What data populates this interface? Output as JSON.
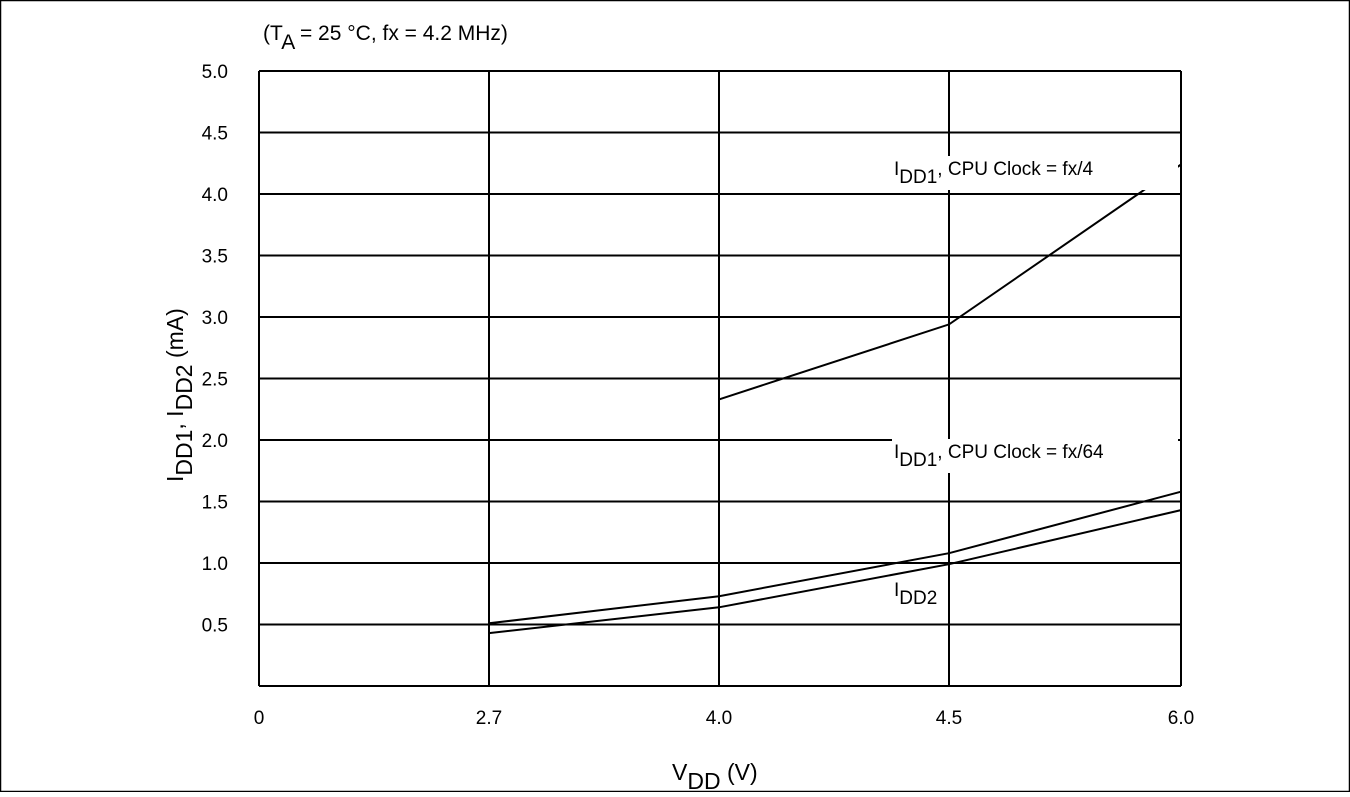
{
  "chart_data": {
    "type": "line",
    "title": {
      "main": "(T",
      "sub": "A",
      "rest": " = 25 °C, fx = 4.2 MHz)"
    },
    "xlabel": {
      "main": "V",
      "sub": "DD",
      "rest": " (V)"
    },
    "ylabel": {
      "p1": "I",
      "s1": "DD1",
      "p2": ", I",
      "s2": "DD2",
      "p3": " (mA)"
    },
    "x_ticks": [
      "0",
      "2.7",
      "4.0",
      "4.5",
      "6.0"
    ],
    "y_ticks": [
      "0.5",
      "1.0",
      "1.5",
      "2.0",
      "2.5",
      "3.0",
      "3.5",
      "4.0",
      "4.5",
      "5.0"
    ],
    "ylim": [
      0,
      5.0
    ],
    "grid": true,
    "series": [
      {
        "name": "IDD1, CPU Clock = fx/4",
        "label": {
          "main": "I",
          "sub": "DD1",
          "rest": ", CPU Clock = fx/4"
        },
        "points": [
          [
            4.0,
            2.33
          ],
          [
            4.5,
            2.94
          ],
          [
            6.0,
            4.24
          ]
        ]
      },
      {
        "name": "IDD1, CPU Clock = fx/64",
        "label": {
          "main": "I",
          "sub": "DD1",
          "rest": ", CPU Clock = fx/64"
        },
        "points": [
          [
            2.7,
            0.51
          ],
          [
            4.0,
            0.73
          ],
          [
            4.5,
            1.08
          ],
          [
            6.0,
            1.58
          ]
        ]
      },
      {
        "name": "IDD2",
        "label": {
          "main": "I",
          "sub": "DD2",
          "rest": ""
        },
        "points": [
          [
            2.7,
            0.43
          ],
          [
            4.0,
            0.64
          ],
          [
            4.5,
            0.99
          ],
          [
            6.0,
            1.43
          ]
        ]
      }
    ]
  }
}
